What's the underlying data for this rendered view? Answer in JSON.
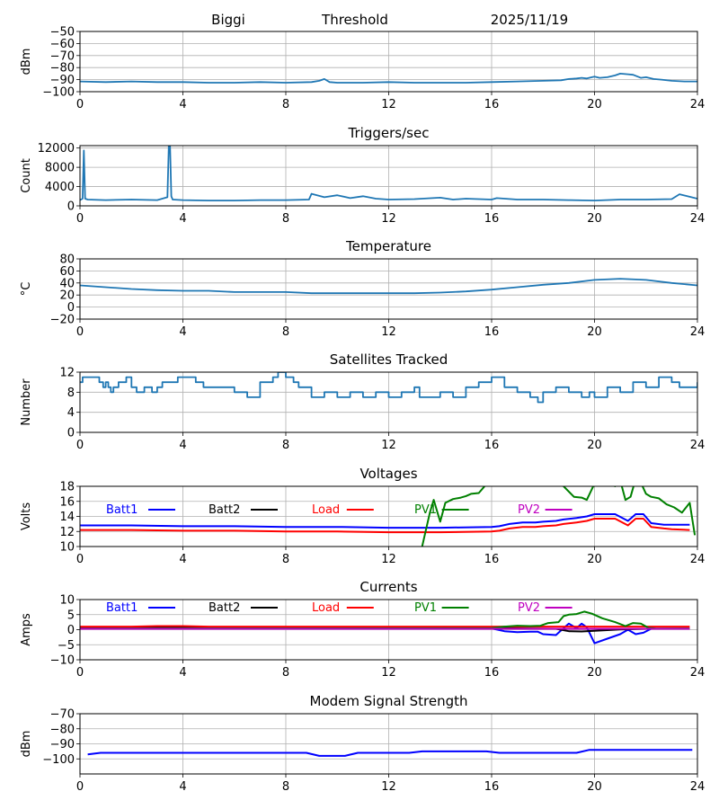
{
  "header": {
    "station": "Biggi",
    "title": "Threshold",
    "date": "2025/11/19"
  },
  "chart_data": [
    {
      "id": "threshold",
      "type": "line",
      "title": "",
      "xlabel": "",
      "ylabel": "dBm",
      "xlim": [
        0,
        24
      ],
      "ylim": [
        -100,
        -50
      ],
      "xticks": [
        0,
        4,
        8,
        12,
        16,
        20,
        24
      ],
      "yticks": [
        -100,
        -90,
        -80,
        -70,
        -60,
        -50
      ],
      "ytick_labels": [
        "−100",
        "−90",
        "−80",
        "−70",
        "−60",
        "−50"
      ],
      "grid": true,
      "series": [
        {
          "name": "Threshold",
          "color": "#1f77b4",
          "x": [
            0,
            1,
            2,
            3,
            4,
            5,
            6,
            7,
            8,
            9,
            9.3,
            9.5,
            9.7,
            10,
            11,
            12,
            13,
            14,
            15,
            16,
            17,
            18,
            18.7,
            19,
            19.3,
            19.5,
            19.7,
            19.9,
            20,
            20.2,
            20.5,
            20.8,
            21,
            21.3,
            21.5,
            21.8,
            22,
            22.3,
            22.6,
            23,
            23.5,
            24
          ],
          "y": [
            -91.5,
            -92,
            -91.5,
            -92,
            -92,
            -92.5,
            -92.5,
            -92,
            -92.5,
            -92,
            -91,
            -89.5,
            -92,
            -92.5,
            -92.5,
            -92,
            -92.5,
            -92.5,
            -92.5,
            -92,
            -91.5,
            -91,
            -90.5,
            -89.5,
            -89,
            -88.5,
            -89,
            -88,
            -87.5,
            -88.5,
            -88,
            -86.5,
            -85,
            -85.5,
            -86,
            -88.5,
            -88,
            -89.5,
            -90,
            -91,
            -91.5,
            -91.5
          ]
        }
      ]
    },
    {
      "id": "triggers",
      "type": "line",
      "title": "Triggers/sec",
      "xlabel": "",
      "ylabel": "Count",
      "xlim": [
        0,
        24
      ],
      "ylim": [
        0,
        12500
      ],
      "xticks": [
        0,
        4,
        8,
        12,
        16,
        20,
        24
      ],
      "yticks": [
        0,
        4000,
        8000,
        12000
      ],
      "ytick_labels": [
        "0",
        "4000",
        "8000",
        "12000"
      ],
      "grid": true,
      "series": [
        {
          "name": "Triggers",
          "color": "#1f77b4",
          "x": [
            0,
            0.1,
            0.15,
            0.2,
            0.3,
            1,
            2,
            3,
            3.4,
            3.45,
            3.5,
            3.55,
            3.6,
            4,
            5,
            6,
            7,
            8,
            8.9,
            9,
            9.5,
            10,
            10.5,
            11,
            11.5,
            12,
            13,
            14,
            14.5,
            15,
            16,
            16.2,
            17,
            18,
            19,
            20,
            21,
            22,
            23,
            23.3,
            24
          ],
          "y": [
            1200,
            1500,
            11500,
            1500,
            1300,
            1200,
            1300,
            1200,
            1800,
            12500,
            12500,
            2000,
            1300,
            1200,
            1100,
            1100,
            1200,
            1200,
            1300,
            2500,
            1800,
            2200,
            1600,
            2000,
            1500,
            1300,
            1400,
            1700,
            1300,
            1500,
            1300,
            1600,
            1300,
            1300,
            1200,
            1100,
            1300,
            1300,
            1400,
            2400,
            1500
          ]
        }
      ]
    },
    {
      "id": "temperature",
      "type": "line",
      "title": "Temperature",
      "xlabel": "",
      "ylabel": "°C",
      "xlim": [
        0,
        24
      ],
      "ylim": [
        -20,
        80
      ],
      "xticks": [
        0,
        4,
        8,
        12,
        16,
        20,
        24
      ],
      "yticks": [
        -20,
        0,
        20,
        40,
        60,
        80
      ],
      "ytick_labels": [
        "−20",
        "0",
        "20",
        "40",
        "60",
        "80"
      ],
      "grid": true,
      "series": [
        {
          "name": "Temperature",
          "color": "#1f77b4",
          "x": [
            0,
            1,
            2,
            3,
            4,
            5,
            6,
            7,
            8,
            9,
            10,
            11,
            12,
            13,
            14,
            15,
            16,
            17,
            18,
            19,
            20,
            21,
            22,
            23,
            24
          ],
          "y": [
            36,
            33,
            30,
            28,
            27,
            27,
            25,
            25,
            25,
            23,
            23,
            23,
            23,
            23,
            24,
            26,
            29,
            33,
            37,
            40,
            45,
            47,
            45,
            40,
            36
          ]
        }
      ]
    },
    {
      "id": "satellites",
      "type": "line",
      "title": "Satellites Tracked",
      "xlabel": "",
      "ylabel": "Number",
      "xlim": [
        0,
        24
      ],
      "ylim": [
        0,
        12
      ],
      "xticks": [
        0,
        4,
        8,
        12,
        16,
        20,
        24
      ],
      "yticks": [
        0,
        4,
        8,
        12
      ],
      "ytick_labels": [
        "0",
        "4",
        "8",
        "12"
      ],
      "grid": true,
      "step": true,
      "series": [
        {
          "name": "Satellites",
          "color": "#1f77b4",
          "x": [
            0,
            0.1,
            0.5,
            0.75,
            0.9,
            1.0,
            1.1,
            1.2,
            1.3,
            1.5,
            1.8,
            2.0,
            2.2,
            2.5,
            2.8,
            3.0,
            3.2,
            3.7,
            3.8,
            4.0,
            4.5,
            4.8,
            5.5,
            6.0,
            6.5,
            7.0,
            7.5,
            7.7,
            8.0,
            8.3,
            8.5,
            9.0,
            9.5,
            10.0,
            10.5,
            11.0,
            11.5,
            12.0,
            12.5,
            13.0,
            13.2,
            14.0,
            14.5,
            15.0,
            15.5,
            16.0,
            16.5,
            17.0,
            17.5,
            17.8,
            18.0,
            18.5,
            19.0,
            19.5,
            19.8,
            20.0,
            20.5,
            21.0,
            21.5,
            22.0,
            22.5,
            23.0,
            23.3,
            24.0
          ],
          "y": [
            10,
            11,
            11,
            10,
            9,
            10,
            9,
            8,
            9,
            10,
            11,
            9,
            8,
            9,
            8,
            9,
            10,
            10,
            11,
            11,
            10,
            9,
            9,
            8,
            7,
            10,
            11,
            12,
            11,
            10,
            9,
            7,
            8,
            7,
            8,
            7,
            8,
            7,
            8,
            9,
            7,
            8,
            7,
            9,
            10,
            11,
            9,
            8,
            7,
            6,
            8,
            9,
            8,
            7,
            8,
            7,
            9,
            8,
            10,
            9,
            11,
            10,
            9,
            10
          ]
        }
      ]
    },
    {
      "id": "voltages",
      "type": "line",
      "title": "Voltages",
      "xlabel": "",
      "ylabel": "Volts",
      "xlim": [
        0,
        24
      ],
      "ylim": [
        10,
        18
      ],
      "xticks": [
        0,
        4,
        8,
        12,
        16,
        20,
        24
      ],
      "yticks": [
        10,
        12,
        14,
        16,
        18
      ],
      "ytick_labels": [
        "10",
        "12",
        "14",
        "16",
        "18"
      ],
      "grid": true,
      "legend": "top, single row inside axes",
      "series": [
        {
          "name": "Batt1",
          "color": "#0000ff",
          "x": [
            0,
            2,
            4,
            6,
            8,
            10,
            12,
            14,
            16,
            16.3,
            16.7,
            17.2,
            17.7,
            18,
            18.5,
            18.8,
            19.3,
            19.7,
            20,
            20.5,
            20.8,
            21.3,
            21.6,
            21.9,
            22.2,
            22.7,
            23,
            23.7
          ],
          "y": [
            12.8,
            12.8,
            12.7,
            12.7,
            12.6,
            12.6,
            12.5,
            12.5,
            12.6,
            12.7,
            13.0,
            13.2,
            13.2,
            13.3,
            13.4,
            13.6,
            13.8,
            14.0,
            14.3,
            14.3,
            14.3,
            13.4,
            14.3,
            14.3,
            13.1,
            12.9,
            12.9,
            12.9
          ]
        },
        {
          "name": "Batt2",
          "color": "#000000",
          "x": [],
          "y": []
        },
        {
          "name": "Load",
          "color": "#ff0000",
          "x": [
            0,
            2,
            4,
            6,
            8,
            10,
            12,
            14,
            16,
            16.3,
            16.7,
            17.2,
            17.7,
            18,
            18.5,
            18.8,
            19.3,
            19.7,
            20,
            20.5,
            20.8,
            21.3,
            21.6,
            21.9,
            22.2,
            22.7,
            23,
            23.7
          ],
          "y": [
            12.2,
            12.2,
            12.1,
            12.1,
            12.0,
            12.0,
            11.9,
            11.9,
            12.0,
            12.1,
            12.4,
            12.6,
            12.6,
            12.7,
            12.8,
            13.0,
            13.2,
            13.4,
            13.7,
            13.7,
            13.7,
            12.8,
            13.7,
            13.7,
            12.6,
            12.4,
            12.3,
            12.2
          ]
        },
        {
          "name": "PV1",
          "color": "#008000",
          "x": [
            13.3,
            13.6,
            13.75,
            14.0,
            14.2,
            14.5,
            14.8,
            15.0,
            15.2,
            15.5,
            15.8,
            16.2,
            18.5,
            18.8,
            19.2,
            19.5,
            19.7,
            19.95,
            20.2,
            20.5,
            20.8,
            21.0,
            21.2,
            21.4,
            21.6,
            21.8,
            22.0,
            22.2,
            22.5,
            22.8,
            23.1,
            23.4,
            23.7,
            23.9
          ],
          "y": [
            10,
            14.5,
            16.2,
            13.3,
            15.8,
            16.3,
            16.5,
            16.7,
            17.0,
            17.1,
            18.3,
            19.5,
            19.0,
            18.0,
            16.6,
            16.5,
            16.2,
            18.0,
            18.3,
            18.5,
            18.0,
            18.8,
            16.2,
            16.6,
            19.0,
            18.5,
            17.0,
            16.6,
            16.4,
            15.6,
            15.2,
            14.5,
            15.8,
            11.5
          ]
        },
        {
          "name": "PV2",
          "color": "#bf00bf",
          "x": [],
          "y": []
        }
      ]
    },
    {
      "id": "currents",
      "type": "line",
      "title": "Currents",
      "xlabel": "",
      "ylabel": "Amps",
      "xlim": [
        0,
        24
      ],
      "ylim": [
        -10,
        10
      ],
      "xticks": [
        0,
        4,
        8,
        12,
        16,
        20,
        24
      ],
      "yticks": [
        -10,
        -5,
        0,
        5,
        10
      ],
      "ytick_labels": [
        "−10",
        "−5",
        "0",
        "5",
        "10"
      ],
      "grid": true,
      "legend": "top, single row inside axes",
      "series": [
        {
          "name": "Batt1",
          "color": "#0000ff",
          "x": [
            0,
            4,
            8,
            12,
            16,
            16.5,
            17,
            17.5,
            17.8,
            18,
            18.5,
            18.8,
            19.0,
            19.3,
            19.5,
            19.7,
            20.0,
            20.5,
            21.0,
            21.3,
            21.6,
            21.9,
            22.2,
            23.7
          ],
          "y": [
            0.5,
            0.5,
            0.5,
            0.5,
            0.4,
            -0.5,
            -0.8,
            -0.7,
            -0.7,
            -1.5,
            -1.8,
            0.5,
            2.0,
            0.5,
            2.0,
            0.8,
            -4.5,
            -3.0,
            -1.5,
            0.0,
            -1.5,
            -1.0,
            0.3,
            0.3
          ]
        },
        {
          "name": "Batt2",
          "color": "#000000",
          "x": [
            0,
            4,
            8,
            12,
            16,
            18.5,
            19.0,
            19.5,
            20.0,
            21.0,
            22.0,
            23.7
          ],
          "y": [
            0.6,
            0.8,
            0.6,
            0.6,
            0.5,
            0.3,
            -0.5,
            -0.6,
            -0.4,
            0.1,
            0.3,
            0.4
          ]
        },
        {
          "name": "Load",
          "color": "#ff0000",
          "x": [
            0,
            2,
            3,
            4,
            5,
            8,
            12,
            16,
            20,
            23.7
          ],
          "y": [
            1.0,
            1.0,
            1.2,
            1.2,
            1.0,
            1.0,
            1.0,
            1.0,
            1.0,
            1.0
          ]
        },
        {
          "name": "PV1",
          "color": "#008000",
          "x": [
            0,
            16,
            16.5,
            17,
            17.5,
            17.9,
            18.2,
            18.6,
            18.8,
            19.0,
            19.3,
            19.6,
            19.9,
            20.3,
            20.8,
            21.2,
            21.5,
            21.8,
            22.1,
            22.4,
            23.7
          ],
          "y": [
            0.4,
            0.5,
            1.0,
            1.3,
            1.2,
            1.3,
            2.2,
            2.5,
            4.5,
            5.0,
            5.2,
            6.0,
            5.3,
            3.8,
            2.5,
            1.2,
            2.2,
            2.0,
            0.6,
            0.4,
            0.4
          ]
        },
        {
          "name": "PV2",
          "color": "#bf00bf",
          "x": [
            0,
            4,
            8,
            12,
            16,
            20,
            23.7
          ],
          "y": [
            0.3,
            0.3,
            0.3,
            0.3,
            0.3,
            0.3,
            0.3
          ]
        }
      ]
    },
    {
      "id": "modem",
      "type": "line",
      "title": "Modem Signal Strength",
      "xlabel": "",
      "ylabel": "dBm",
      "xlim": [
        0,
        24
      ],
      "ylim": [
        -110,
        -70
      ],
      "xticks": [
        0,
        4,
        8,
        12,
        16,
        20,
        24
      ],
      "yticks": [
        -100,
        -90,
        -80,
        -70
      ],
      "ytick_labels": [
        "−100",
        "−90",
        "−80",
        "−70"
      ],
      "grid": true,
      "series": [
        {
          "name": "Modem",
          "color": "#0000ff",
          "x": [
            0.3,
            0.8,
            8.8,
            9.3,
            10.3,
            10.8,
            12.8,
            13.3,
            15.8,
            16.3,
            19.3,
            19.8,
            23.8
          ],
          "y": [
            -97,
            -96,
            -96,
            -98,
            -98,
            -96,
            -96,
            -95,
            -95,
            -96,
            -96,
            -94,
            -94
          ]
        }
      ]
    }
  ]
}
